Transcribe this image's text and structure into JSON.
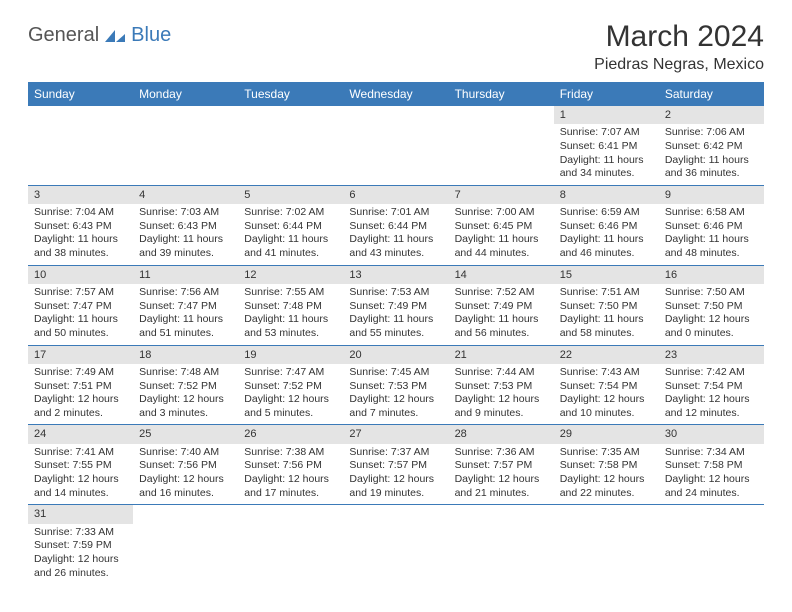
{
  "logo": {
    "part1": "General",
    "part2": "Blue"
  },
  "title": "March 2024",
  "location": "Piedras Negras, Mexico",
  "colors": {
    "header_bg": "#3b7ab8",
    "header_text": "#ffffff",
    "daynum_bg": "#e4e4e4",
    "row_border": "#3b7ab8",
    "body_text": "#333333",
    "logo_gray": "#555555",
    "logo_blue": "#3b7ab8"
  },
  "weekdays": [
    "Sunday",
    "Monday",
    "Tuesday",
    "Wednesday",
    "Thursday",
    "Friday",
    "Saturday"
  ],
  "weeks": [
    [
      null,
      null,
      null,
      null,
      null,
      {
        "n": "1",
        "sr": "Sunrise: 7:07 AM",
        "ss": "Sunset: 6:41 PM",
        "d1": "Daylight: 11 hours",
        "d2": "and 34 minutes."
      },
      {
        "n": "2",
        "sr": "Sunrise: 7:06 AM",
        "ss": "Sunset: 6:42 PM",
        "d1": "Daylight: 11 hours",
        "d2": "and 36 minutes."
      }
    ],
    [
      {
        "n": "3",
        "sr": "Sunrise: 7:04 AM",
        "ss": "Sunset: 6:43 PM",
        "d1": "Daylight: 11 hours",
        "d2": "and 38 minutes."
      },
      {
        "n": "4",
        "sr": "Sunrise: 7:03 AM",
        "ss": "Sunset: 6:43 PM",
        "d1": "Daylight: 11 hours",
        "d2": "and 39 minutes."
      },
      {
        "n": "5",
        "sr": "Sunrise: 7:02 AM",
        "ss": "Sunset: 6:44 PM",
        "d1": "Daylight: 11 hours",
        "d2": "and 41 minutes."
      },
      {
        "n": "6",
        "sr": "Sunrise: 7:01 AM",
        "ss": "Sunset: 6:44 PM",
        "d1": "Daylight: 11 hours",
        "d2": "and 43 minutes."
      },
      {
        "n": "7",
        "sr": "Sunrise: 7:00 AM",
        "ss": "Sunset: 6:45 PM",
        "d1": "Daylight: 11 hours",
        "d2": "and 44 minutes."
      },
      {
        "n": "8",
        "sr": "Sunrise: 6:59 AM",
        "ss": "Sunset: 6:46 PM",
        "d1": "Daylight: 11 hours",
        "d2": "and 46 minutes."
      },
      {
        "n": "9",
        "sr": "Sunrise: 6:58 AM",
        "ss": "Sunset: 6:46 PM",
        "d1": "Daylight: 11 hours",
        "d2": "and 48 minutes."
      }
    ],
    [
      {
        "n": "10",
        "sr": "Sunrise: 7:57 AM",
        "ss": "Sunset: 7:47 PM",
        "d1": "Daylight: 11 hours",
        "d2": "and 50 minutes."
      },
      {
        "n": "11",
        "sr": "Sunrise: 7:56 AM",
        "ss": "Sunset: 7:47 PM",
        "d1": "Daylight: 11 hours",
        "d2": "and 51 minutes."
      },
      {
        "n": "12",
        "sr": "Sunrise: 7:55 AM",
        "ss": "Sunset: 7:48 PM",
        "d1": "Daylight: 11 hours",
        "d2": "and 53 minutes."
      },
      {
        "n": "13",
        "sr": "Sunrise: 7:53 AM",
        "ss": "Sunset: 7:49 PM",
        "d1": "Daylight: 11 hours",
        "d2": "and 55 minutes."
      },
      {
        "n": "14",
        "sr": "Sunrise: 7:52 AM",
        "ss": "Sunset: 7:49 PM",
        "d1": "Daylight: 11 hours",
        "d2": "and 56 minutes."
      },
      {
        "n": "15",
        "sr": "Sunrise: 7:51 AM",
        "ss": "Sunset: 7:50 PM",
        "d1": "Daylight: 11 hours",
        "d2": "and 58 minutes."
      },
      {
        "n": "16",
        "sr": "Sunrise: 7:50 AM",
        "ss": "Sunset: 7:50 PM",
        "d1": "Daylight: 12 hours",
        "d2": "and 0 minutes."
      }
    ],
    [
      {
        "n": "17",
        "sr": "Sunrise: 7:49 AM",
        "ss": "Sunset: 7:51 PM",
        "d1": "Daylight: 12 hours",
        "d2": "and 2 minutes."
      },
      {
        "n": "18",
        "sr": "Sunrise: 7:48 AM",
        "ss": "Sunset: 7:52 PM",
        "d1": "Daylight: 12 hours",
        "d2": "and 3 minutes."
      },
      {
        "n": "19",
        "sr": "Sunrise: 7:47 AM",
        "ss": "Sunset: 7:52 PM",
        "d1": "Daylight: 12 hours",
        "d2": "and 5 minutes."
      },
      {
        "n": "20",
        "sr": "Sunrise: 7:45 AM",
        "ss": "Sunset: 7:53 PM",
        "d1": "Daylight: 12 hours",
        "d2": "and 7 minutes."
      },
      {
        "n": "21",
        "sr": "Sunrise: 7:44 AM",
        "ss": "Sunset: 7:53 PM",
        "d1": "Daylight: 12 hours",
        "d2": "and 9 minutes."
      },
      {
        "n": "22",
        "sr": "Sunrise: 7:43 AM",
        "ss": "Sunset: 7:54 PM",
        "d1": "Daylight: 12 hours",
        "d2": "and 10 minutes."
      },
      {
        "n": "23",
        "sr": "Sunrise: 7:42 AM",
        "ss": "Sunset: 7:54 PM",
        "d1": "Daylight: 12 hours",
        "d2": "and 12 minutes."
      }
    ],
    [
      {
        "n": "24",
        "sr": "Sunrise: 7:41 AM",
        "ss": "Sunset: 7:55 PM",
        "d1": "Daylight: 12 hours",
        "d2": "and 14 minutes."
      },
      {
        "n": "25",
        "sr": "Sunrise: 7:40 AM",
        "ss": "Sunset: 7:56 PM",
        "d1": "Daylight: 12 hours",
        "d2": "and 16 minutes."
      },
      {
        "n": "26",
        "sr": "Sunrise: 7:38 AM",
        "ss": "Sunset: 7:56 PM",
        "d1": "Daylight: 12 hours",
        "d2": "and 17 minutes."
      },
      {
        "n": "27",
        "sr": "Sunrise: 7:37 AM",
        "ss": "Sunset: 7:57 PM",
        "d1": "Daylight: 12 hours",
        "d2": "and 19 minutes."
      },
      {
        "n": "28",
        "sr": "Sunrise: 7:36 AM",
        "ss": "Sunset: 7:57 PM",
        "d1": "Daylight: 12 hours",
        "d2": "and 21 minutes."
      },
      {
        "n": "29",
        "sr": "Sunrise: 7:35 AM",
        "ss": "Sunset: 7:58 PM",
        "d1": "Daylight: 12 hours",
        "d2": "and 22 minutes."
      },
      {
        "n": "30",
        "sr": "Sunrise: 7:34 AM",
        "ss": "Sunset: 7:58 PM",
        "d1": "Daylight: 12 hours",
        "d2": "and 24 minutes."
      }
    ],
    [
      {
        "n": "31",
        "sr": "Sunrise: 7:33 AM",
        "ss": "Sunset: 7:59 PM",
        "d1": "Daylight: 12 hours",
        "d2": "and 26 minutes."
      },
      null,
      null,
      null,
      null,
      null,
      null
    ]
  ]
}
